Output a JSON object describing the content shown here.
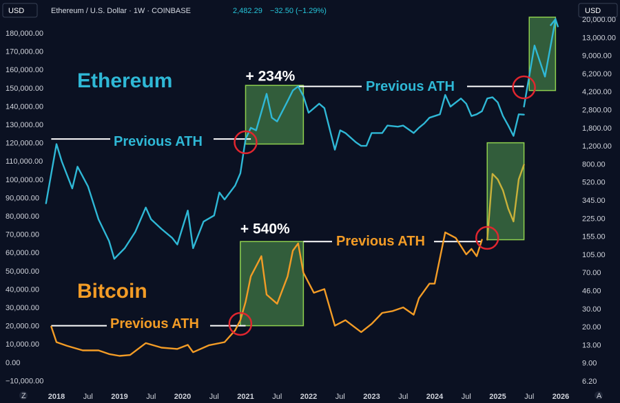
{
  "header": {
    "currency_left": "USD",
    "symbol": "Ethereum / U.S. Dollar · 1W · COINBASE",
    "last": "2,482.29",
    "change": "−32.50 (−1.29%)",
    "currency_right": "USD",
    "left_corner_icon": "Z",
    "right_corner_icon": "A"
  },
  "annotations": {
    "eth_title": "Ethereum",
    "btc_title": "Bitcoin",
    "eth_prev_ath_1": "Previous ATH",
    "eth_prev_ath_2": "Previous ATH",
    "btc_prev_ath_1": "Previous ATH",
    "btc_prev_ath_2": "Previous ATH",
    "eth_gain": "+ 234%",
    "btc_gain": "+ 540%"
  },
  "colors": {
    "background": "#0b1122",
    "ethereum": "#2fb8d6",
    "bitcoin": "#f39c26",
    "bitcoin_projection": "#c9b13a",
    "box_fill": "#3a6b3f",
    "box_stroke": "#8fd14f",
    "circle": "#e0262f",
    "ath_line": "#ffffff"
  },
  "chart_data": {
    "type": "line",
    "x_ticks": [
      "2018",
      "Jul",
      "2019",
      "Jul",
      "2020",
      "Jul",
      "2021",
      "Jul",
      "2022",
      "Jul",
      "2023",
      "Jul",
      "2024",
      "Jul",
      "2025",
      "Jul",
      "2026"
    ],
    "x_tick_dates": [
      "2018-01",
      "2018-07",
      "2019-01",
      "2019-07",
      "2020-01",
      "2020-07",
      "2021-01",
      "2021-07",
      "2022-01",
      "2022-07",
      "2023-01",
      "2023-07",
      "2024-01",
      "2024-07",
      "2025-01",
      "2025-07",
      "2026-01"
    ],
    "left_axis": {
      "ticks": [
        "180,000.00",
        "170,000.00",
        "160,000.00",
        "150,000.00",
        "140,000.00",
        "130,000.00",
        "120,000.00",
        "110,000.00",
        "100,000.00",
        "90,000.00",
        "80,000.00",
        "70,000.00",
        "60,000.00",
        "50,000.00",
        "40,000.00",
        "30,000.00",
        "20,000.00",
        "10,000.00",
        "0.00",
        "−10,000.00"
      ],
      "range": [
        -10000,
        180000
      ]
    },
    "right_axis": {
      "scale": "log",
      "ticks": [
        "20,000.00",
        "13,000.00",
        "9,000.00",
        "6,200.00",
        "4,200.00",
        "2,800.00",
        "1,800.00",
        "1,200.00",
        "800.00",
        "520.00",
        "345.00",
        "225.00",
        "155.00",
        "105.00",
        "70.00",
        "46.00",
        "30.00",
        "20.00",
        "13.00",
        "9.00",
        "6.20"
      ]
    },
    "series": [
      {
        "name": "Ethereum",
        "axis": "right",
        "x": [
          "2017-11",
          "2018-01",
          "2018-02",
          "2018-04",
          "2018-05",
          "2018-07",
          "2018-09",
          "2018-11",
          "2018-12",
          "2019-02",
          "2019-04",
          "2019-06",
          "2019-07",
          "2019-09",
          "2019-11",
          "2019-12",
          "2020-02",
          "2020-03",
          "2020-05",
          "2020-07",
          "2020-08",
          "2020-09",
          "2020-11",
          "2020-12",
          "2021-01",
          "2021-02",
          "2021-03",
          "2021-05",
          "2021-06",
          "2021-07",
          "2021-09",
          "2021-10",
          "2021-11",
          "2021-12",
          "2022-01",
          "2022-03",
          "2022-04",
          "2022-06",
          "2022-07",
          "2022-08",
          "2022-10",
          "2022-11",
          "2022-12",
          "2023-01",
          "2023-03",
          "2023-04",
          "2023-06",
          "2023-07",
          "2023-09",
          "2023-10",
          "2023-11",
          "2023-12",
          "2024-02",
          "2024-03",
          "2024-04",
          "2024-06",
          "2024-07",
          "2024-08",
          "2024-09",
          "2024-10",
          "2024-11",
          "2024-12",
          "2025-01",
          "2025-02",
          "2025-03",
          "2025-04",
          "2025-05",
          "2025-06"
        ],
        "values": [
          320,
          1250,
          850,
          450,
          750,
          470,
          220,
          140,
          95,
          120,
          170,
          290,
          220,
          180,
          150,
          130,
          270,
          120,
          210,
          240,
          410,
          350,
          480,
          640,
          1400,
          1800,
          1700,
          4000,
          2300,
          2100,
          3400,
          4300,
          4700,
          3800,
          2600,
          3200,
          2900,
          1100,
          1700,
          1600,
          1300,
          1200,
          1200,
          1600,
          1600,
          1900,
          1850,
          1900,
          1600,
          1800,
          2000,
          2300,
          2500,
          3900,
          3000,
          3600,
          3200,
          2400,
          2500,
          2700,
          3600,
          3700,
          3300,
          2400,
          1900,
          1500,
          2500,
          2480
        ]
      },
      {
        "name": "Ethereum",
        "axis": "right",
        "x": [
          "2025-06",
          "2025-08",
          "2025-10",
          "2025-12"
        ],
        "values": [
          3000,
          11000,
          5800,
          20000
        ]
      },
      {
        "name": "Bitcoin",
        "axis": "left",
        "x": [
          "2017-12",
          "2018-01",
          "2018-03",
          "2018-06",
          "2018-09",
          "2018-11",
          "2019-01",
          "2019-03",
          "2019-06",
          "2019-09",
          "2019-12",
          "2020-02",
          "2020-03",
          "2020-06",
          "2020-09",
          "2020-11",
          "2020-12",
          "2021-01",
          "2021-02",
          "2021-04",
          "2021-05",
          "2021-07",
          "2021-09",
          "2021-10",
          "2021-11",
          "2021-12",
          "2022-02",
          "2022-04",
          "2022-06",
          "2022-08",
          "2022-11",
          "2023-01",
          "2023-03",
          "2023-05",
          "2023-07",
          "2023-09",
          "2023-10",
          "2023-12",
          "2024-01",
          "2024-03",
          "2024-05",
          "2024-07",
          "2024-08",
          "2024-09",
          "2024-10"
        ],
        "values": [
          19500,
          11000,
          9000,
          6500,
          6500,
          4500,
          3500,
          4000,
          10500,
          8000,
          7300,
          9500,
          5500,
          9300,
          11000,
          17500,
          23000,
          33000,
          47000,
          58000,
          37000,
          32000,
          47000,
          61000,
          65000,
          49000,
          38000,
          40000,
          20000,
          23000,
          16500,
          21000,
          27000,
          28000,
          30000,
          26000,
          35000,
          43000,
          43000,
          71000,
          68000,
          59000,
          62000,
          58000,
          67000
        ]
      },
      {
        "name": "Bitcoin",
        "axis": "left",
        "x": [
          "2024-11",
          "2024-12",
          "2025-01",
          "2025-02",
          "2025-03",
          "2025-04",
          "2025-05",
          "2025-06"
        ],
        "values": [
          67000,
          103000,
          100000,
          94000,
          84000,
          77000,
          100000,
          108000
        ]
      }
    ],
    "boxes": [
      {
        "x_start": "2021-01",
        "x_end": "2021-12",
        "y_start": 1250,
        "y_end": 4800,
        "axis": "right"
      },
      {
        "x_start": "2025-07",
        "x_end": "2025-12",
        "y_start": 4300,
        "y_end": 21000,
        "axis": "right"
      },
      {
        "x_start": "2020-12",
        "x_end": "2021-12",
        "y_start": 20000,
        "y_end": 66000,
        "axis": "left"
      },
      {
        "x_start": "2024-11",
        "x_end": "2025-06",
        "y_start": 67000,
        "y_end": 120000,
        "axis": "left"
      }
    ],
    "ath_levels": [
      {
        "series": "Ethereum",
        "value": 1400,
        "x_start": "2017-12",
        "x_end": "2021-02",
        "axis": "right"
      },
      {
        "series": "Ethereum",
        "value": 4700,
        "x_start": "2021-11",
        "x_end": "2025-06",
        "axis": "right"
      },
      {
        "series": "Bitcoin",
        "value": 20000,
        "x_start": "2017-12",
        "x_end": "2021-01",
        "axis": "left"
      },
      {
        "series": "Bitcoin",
        "value": 66000,
        "x_start": "2021-12",
        "x_end": "2024-10",
        "axis": "left"
      }
    ],
    "breakout_circles": [
      {
        "x": "2021-01",
        "value": 1300,
        "axis": "right"
      },
      {
        "x": "2025-06",
        "value": 4600,
        "axis": "right"
      },
      {
        "x": "2020-12",
        "value": 21000,
        "axis": "left"
      },
      {
        "x": "2024-11",
        "value": 68000,
        "axis": "left"
      }
    ],
    "gains": [
      {
        "series": "Ethereum",
        "x": "2021-01",
        "value": 5000,
        "axis": "right"
      },
      {
        "series": "Bitcoin",
        "x": "2020-12",
        "value": 69000,
        "axis": "left"
      }
    ],
    "grid": false
  }
}
